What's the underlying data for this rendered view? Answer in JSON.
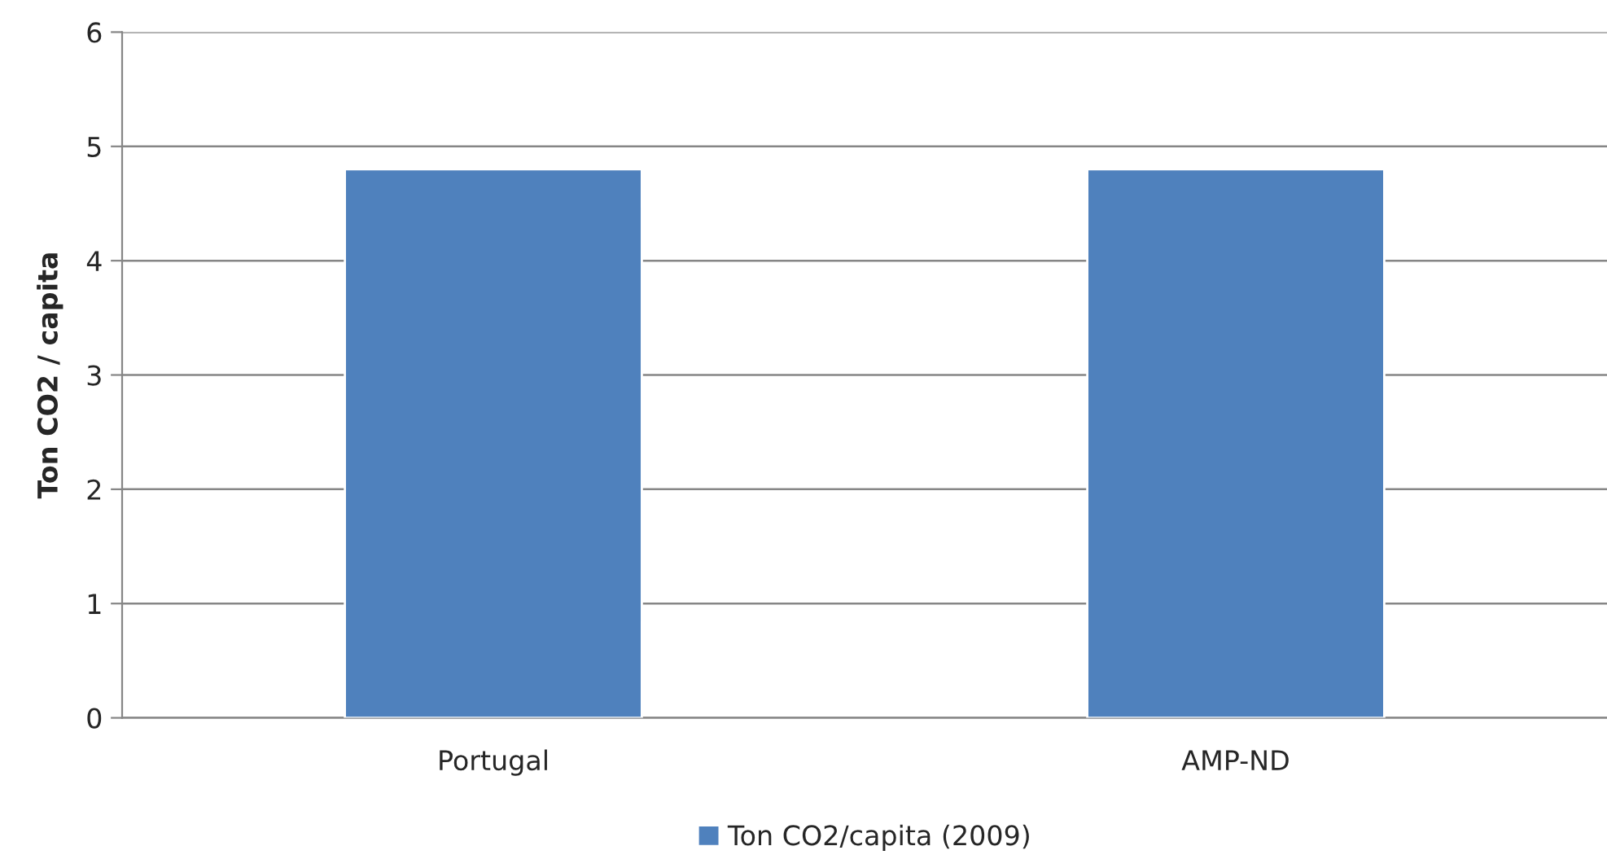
{
  "chart_data": {
    "type": "bar",
    "ylabel": "Ton CO2 / capita",
    "categories": [
      "Portugal",
      "AMP-ND"
    ],
    "series": [
      {
        "name": "Ton CO2/capita (2009)",
        "color": "#4f81bd",
        "values": [
          4.8,
          4.8
        ]
      }
    ],
    "ylim": [
      0,
      6
    ],
    "yticks": [
      0,
      1,
      2,
      3,
      4,
      5,
      6
    ],
    "grid": "y",
    "legend": "bottom"
  }
}
